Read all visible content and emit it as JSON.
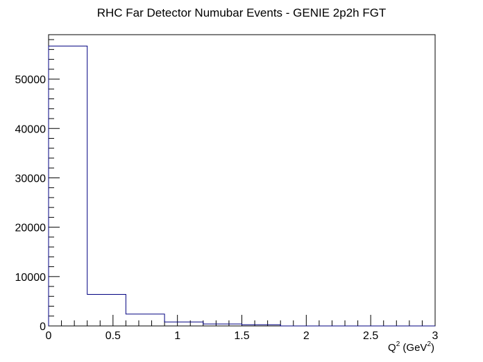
{
  "chart_data": {
    "type": "bar",
    "style": "step-histogram",
    "title": "RHC Far Detector Numubar Events - GENIE 2p2h FGT",
    "xlabel": {
      "base": "Q",
      "sup1": "2",
      "mid": " (GeV",
      "sup2": "2",
      "end": ")"
    },
    "ylabel": "",
    "xlim": [
      0,
      3
    ],
    "ylim": [
      0,
      59000
    ],
    "x_ticks": [
      {
        "value": 0,
        "label": "0"
      },
      {
        "value": 0.5,
        "label": "0.5"
      },
      {
        "value": 1,
        "label": "1"
      },
      {
        "value": 1.5,
        "label": "1.5"
      },
      {
        "value": 2,
        "label": "2"
      },
      {
        "value": 2.5,
        "label": "2.5"
      },
      {
        "value": 3,
        "label": "3"
      }
    ],
    "y_ticks": [
      {
        "value": 0,
        "label": "0"
      },
      {
        "value": 10000,
        "label": "10000"
      },
      {
        "value": 20000,
        "label": "20000"
      },
      {
        "value": 30000,
        "label": "30000"
      },
      {
        "value": 40000,
        "label": "40000"
      },
      {
        "value": 50000,
        "label": "50000"
      }
    ],
    "bin_edges": [
      0,
      0.3,
      0.6,
      0.9,
      1.2,
      1.5,
      1.8,
      2.1,
      2.4,
      2.7,
      3.0
    ],
    "values": [
      56700,
      6400,
      2400,
      800,
      400,
      250,
      0,
      0,
      0,
      0
    ],
    "line_color": "#000080",
    "grid": false,
    "legend": "none"
  }
}
